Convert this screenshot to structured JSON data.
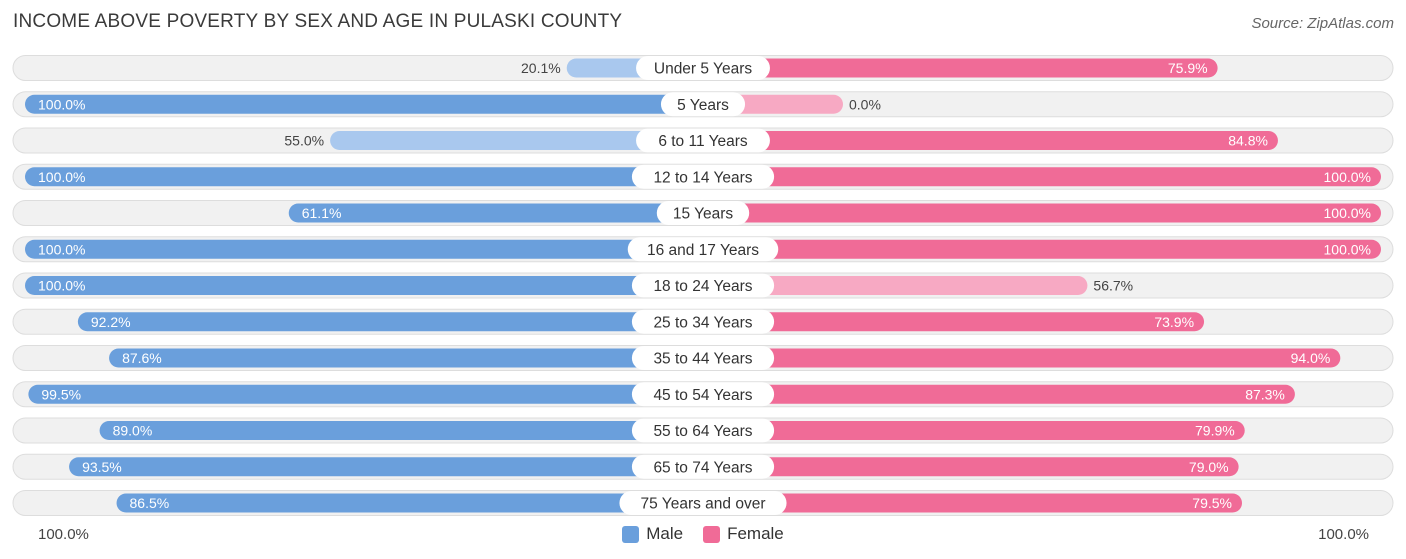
{
  "header": {
    "title": "INCOME ABOVE POVERTY BY SEX AND AGE IN PULASKI COUNTY",
    "source": "Source: ZipAtlas.com"
  },
  "legend": {
    "male_label": "Male",
    "female_label": "Female"
  },
  "axis": {
    "left_label": "100.0%",
    "right_label": "100.0%"
  },
  "colors": {
    "male_full": "#6a9fdc",
    "male_light": "#a9c8ee",
    "female_full": "#f06b97",
    "female_light": "#f7a9c3",
    "track": "#f1f1f1",
    "track_border": "#dddddd"
  },
  "chart_data": {
    "type": "bar",
    "orientation": "diverging-horizontal",
    "title": "INCOME ABOVE POVERTY BY SEX AND AGE IN PULASKI COUNTY",
    "categories": [
      "Under 5 Years",
      "5 Years",
      "6 to 11 Years",
      "12 to 14 Years",
      "15 Years",
      "16 and 17 Years",
      "18 to 24 Years",
      "25 to 34 Years",
      "35 to 44 Years",
      "45 to 54 Years",
      "55 to 64 Years",
      "65 to 74 Years",
      "75 Years and over"
    ],
    "series": [
      {
        "name": "Male",
        "values": [
          20.1,
          100.0,
          55.0,
          100.0,
          61.1,
          100.0,
          100.0,
          92.2,
          87.6,
          99.5,
          89.0,
          93.5,
          86.5
        ],
        "labels": [
          "20.1%",
          "100.0%",
          "55.0%",
          "100.0%",
          "61.1%",
          "100.0%",
          "100.0%",
          "92.2%",
          "87.6%",
          "99.5%",
          "89.0%",
          "93.5%",
          "86.5%"
        ]
      },
      {
        "name": "Female",
        "values": [
          75.9,
          0.0,
          84.8,
          100.0,
          100.0,
          100.0,
          56.7,
          73.9,
          94.0,
          87.3,
          79.9,
          79.0,
          79.5
        ],
        "labels": [
          "75.9%",
          "0.0%",
          "84.8%",
          "100.0%",
          "100.0%",
          "100.0%",
          "56.7%",
          "73.9%",
          "94.0%",
          "87.3%",
          "79.9%",
          "79.0%",
          "79.5%"
        ]
      }
    ],
    "xlim": [
      0,
      100
    ],
    "legend_position": "bottom-center"
  }
}
